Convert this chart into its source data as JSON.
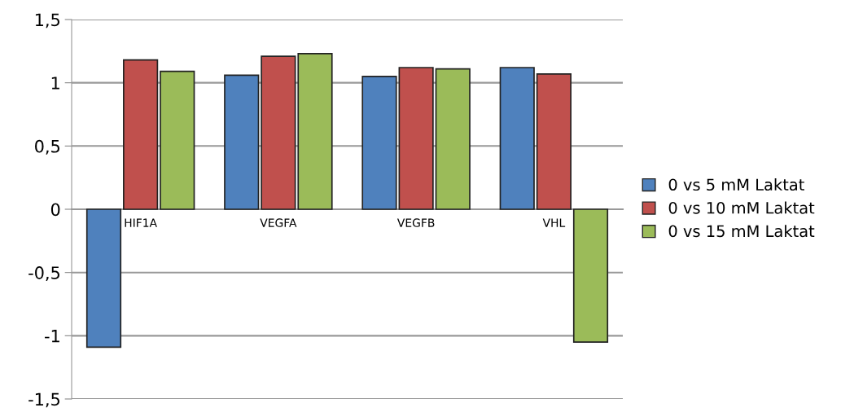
{
  "chart_data": {
    "type": "bar",
    "categories": [
      "HIF1A",
      "VEGFA",
      "VEGFB",
      "VHL"
    ],
    "series": [
      {
        "name": "0 vs 5 mM Laktat",
        "color": "#4f81bd",
        "values": [
          -1.09,
          1.06,
          1.05,
          1.12
        ]
      },
      {
        "name": "0 vs 10 mM Laktat",
        "color": "#c0504d",
        "values": [
          1.18,
          1.21,
          1.12,
          1.07
        ]
      },
      {
        "name": "0 vs 15 mM Laktat",
        "color": "#9bbb59",
        "values": [
          1.09,
          1.23,
          1.11,
          -1.05
        ]
      }
    ],
    "ylim": [
      -1.5,
      1.5
    ],
    "yticks": [
      {
        "value": -1.5,
        "label": "-1,5"
      },
      {
        "value": -1,
        "label": "-1"
      },
      {
        "value": -0.5,
        "label": "-0,5"
      },
      {
        "value": 0,
        "label": "0"
      },
      {
        "value": 0.5,
        "label": "0,5"
      },
      {
        "value": 1,
        "label": "1"
      },
      {
        "value": 1.5,
        "label": "1,5"
      }
    ],
    "grid": "y",
    "legend": "right"
  }
}
